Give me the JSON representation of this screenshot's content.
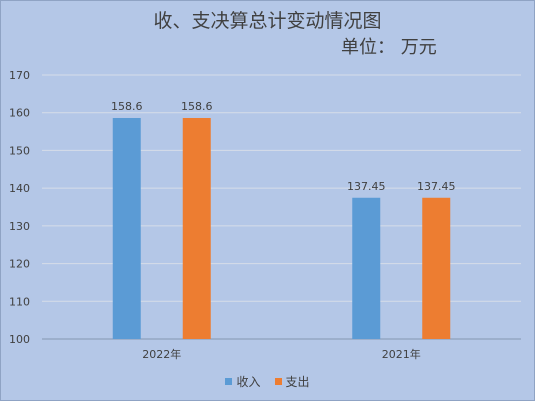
{
  "chart_data": {
    "type": "bar",
    "title": "收、支决算总计变动情况图",
    "subtitle": "单位：  万元",
    "categories": [
      "2022年",
      "2021年"
    ],
    "series": [
      {
        "name": "收入",
        "values": [
          158.6,
          137.45
        ],
        "labels": [
          "158.6",
          "137.45"
        ],
        "color": "#5b9bd5"
      },
      {
        "name": "支出",
        "values": [
          158.6,
          137.45
        ],
        "labels": [
          "158.6",
          "137.45"
        ],
        "color": "#ed7d31"
      }
    ],
    "ylim": [
      100,
      170
    ],
    "yticks": [
      100,
      110,
      120,
      130,
      140,
      150,
      160,
      170
    ],
    "grid": true,
    "legend": "bottom"
  }
}
